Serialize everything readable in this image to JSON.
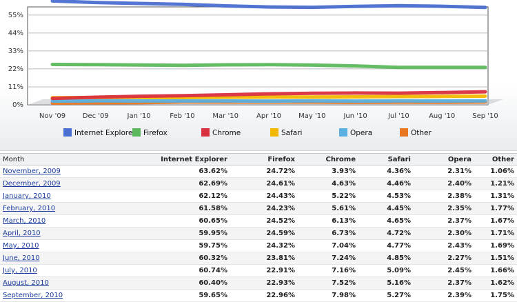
{
  "chart_data": {
    "type": "area",
    "categories": [
      "Nov '09",
      "Dec '09",
      "Jan '10",
      "Feb '10",
      "Mar '10",
      "Apr '10",
      "May '10",
      "Jun '10",
      "Jul '10",
      "Aug '10",
      "Sep '10"
    ],
    "y_ticks": [
      "0%",
      "11%",
      "22%",
      "33%",
      "44%",
      "55%"
    ],
    "ylim": [
      0,
      60
    ],
    "grid": true,
    "legend_position": "bottom",
    "series": [
      {
        "name": "Internet Explorer",
        "color": "#4a6fd0",
        "values": [
          63.62,
          62.69,
          62.12,
          61.58,
          60.65,
          59.95,
          59.75,
          60.32,
          60.74,
          60.4,
          59.65
        ]
      },
      {
        "name": "Firefox",
        "color": "#5cb85c",
        "values": [
          24.72,
          24.61,
          24.43,
          24.23,
          24.52,
          24.59,
          24.32,
          23.81,
          22.91,
          22.93,
          22.96
        ]
      },
      {
        "name": "Chrome",
        "color": "#d9303f",
        "values": [
          3.93,
          4.63,
          5.22,
          5.61,
          6.13,
          6.73,
          7.04,
          7.24,
          7.16,
          7.52,
          7.98
        ]
      },
      {
        "name": "Safari",
        "color": "#f3b800",
        "values": [
          4.36,
          4.46,
          4.53,
          4.45,
          4.65,
          4.72,
          4.77,
          4.85,
          5.09,
          5.16,
          5.27
        ]
      },
      {
        "name": "Opera",
        "color": "#5ab0e0",
        "values": [
          2.31,
          2.4,
          2.38,
          2.35,
          2.37,
          2.3,
          2.43,
          2.27,
          2.45,
          2.37,
          2.39
        ]
      },
      {
        "name": "Other",
        "color": "#e87722",
        "values": [
          1.06,
          1.21,
          1.31,
          1.77,
          1.67,
          1.71,
          1.69,
          1.51,
          1.66,
          1.62,
          1.75
        ]
      }
    ]
  },
  "table": {
    "headers": [
      "Month",
      "Internet Explorer",
      "Firefox",
      "Chrome",
      "Safari",
      "Opera",
      "Other"
    ],
    "rows": [
      [
        "November, 2009",
        "63.62%",
        "24.72%",
        "3.93%",
        "4.36%",
        "2.31%",
        "1.06%"
      ],
      [
        "December, 2009",
        "62.69%",
        "24.61%",
        "4.63%",
        "4.46%",
        "2.40%",
        "1.21%"
      ],
      [
        "January, 2010",
        "62.12%",
        "24.43%",
        "5.22%",
        "4.53%",
        "2.38%",
        "1.31%"
      ],
      [
        "February, 2010",
        "61.58%",
        "24.23%",
        "5.61%",
        "4.45%",
        "2.35%",
        "1.77%"
      ],
      [
        "March, 2010",
        "60.65%",
        "24.52%",
        "6.13%",
        "4.65%",
        "2.37%",
        "1.67%"
      ],
      [
        "April, 2010",
        "59.95%",
        "24.59%",
        "6.73%",
        "4.72%",
        "2.30%",
        "1.71%"
      ],
      [
        "May, 2010",
        "59.75%",
        "24.32%",
        "7.04%",
        "4.77%",
        "2.43%",
        "1.69%"
      ],
      [
        "June, 2010",
        "60.32%",
        "23.81%",
        "7.24%",
        "4.85%",
        "2.27%",
        "1.51%"
      ],
      [
        "July, 2010",
        "60.74%",
        "22.91%",
        "7.16%",
        "5.09%",
        "2.45%",
        "1.66%"
      ],
      [
        "August, 2010",
        "60.40%",
        "22.93%",
        "7.52%",
        "5.16%",
        "2.37%",
        "1.62%"
      ],
      [
        "September, 2010",
        "59.65%",
        "22.96%",
        "7.98%",
        "5.27%",
        "2.39%",
        "1.75%"
      ]
    ]
  }
}
